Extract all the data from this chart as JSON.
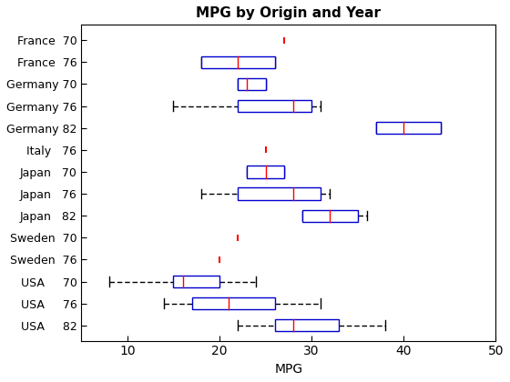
{
  "title": "MPG by Origin and Year",
  "xlabel": "MPG",
  "xlim": [
    5,
    50
  ],
  "xticks": [
    10,
    20,
    30,
    40,
    50
  ],
  "groups": [
    {
      "label": "France  70",
      "type": "outlier",
      "outliers": [
        27
      ]
    },
    {
      "label": "France  76",
      "type": "box",
      "whislo": 18,
      "q1": 18,
      "med": 22,
      "q3": 26,
      "whishi": 26,
      "outliers": []
    },
    {
      "label": "Germany 70",
      "type": "box",
      "whislo": 22,
      "q1": 22,
      "med": 23,
      "q3": 25,
      "whishi": 25,
      "outliers": []
    },
    {
      "label": "Germany 76",
      "type": "box",
      "whislo": 15,
      "q1": 22,
      "med": 28,
      "q3": 30,
      "whishi": 31,
      "outliers": []
    },
    {
      "label": "Germany 82",
      "type": "box",
      "whislo": 37,
      "q1": 37,
      "med": 40,
      "q3": 44,
      "whishi": 44,
      "outliers": []
    },
    {
      "label": "Italy   76",
      "type": "outlier",
      "outliers": [
        25
      ]
    },
    {
      "label": "Japan   70",
      "type": "box",
      "whislo": 23,
      "q1": 23,
      "med": 25,
      "q3": 27,
      "whishi": 27,
      "outliers": []
    },
    {
      "label": "Japan   76",
      "type": "box",
      "whislo": 18,
      "q1": 22,
      "med": 28,
      "q3": 31,
      "whishi": 32,
      "outliers": []
    },
    {
      "label": "Japan   82",
      "type": "box",
      "whislo": 29,
      "q1": 29,
      "med": 32,
      "q3": 35,
      "whishi": 36,
      "outliers": []
    },
    {
      "label": "Sweden  70",
      "type": "outlier",
      "outliers": [
        22
      ]
    },
    {
      "label": "Sweden  76",
      "type": "outlier",
      "outliers": [
        20
      ]
    },
    {
      "label": "USA     70",
      "type": "box",
      "whislo": 8,
      "q1": 15,
      "med": 16,
      "q3": 20,
      "whishi": 24,
      "outliers": []
    },
    {
      "label": "USA     76",
      "type": "box",
      "whislo": 14,
      "q1": 17,
      "med": 21,
      "q3": 26,
      "whishi": 31,
      "outliers": []
    },
    {
      "label": "USA     82",
      "type": "box",
      "whislo": 22,
      "q1": 26,
      "med": 28,
      "q3": 33,
      "whishi": 38,
      "outliers": []
    }
  ],
  "box_color": "#0000cd",
  "median_color": "#ff0000",
  "whisker_color": "#000000",
  "outlier_color": "#ff0000",
  "figsize": [
    5.6,
    4.2
  ],
  "dpi": 100
}
